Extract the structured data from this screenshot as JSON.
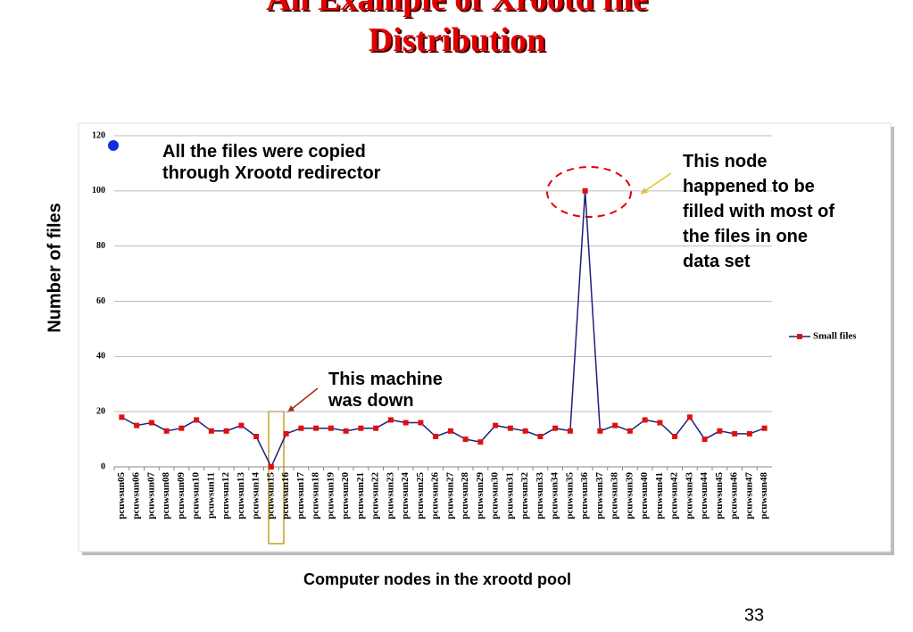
{
  "chart_data": {
    "type": "line",
    "title": "An Example of Xrootd file Distribution",
    "x_label": "Computer nodes in the xrootd pool",
    "y_label": "Number of files",
    "categories": [
      "pcuwsun05",
      "pcuwsun06",
      "pcuwsun07",
      "pcuwsun08",
      "pcuwsun09",
      "pcuwsun10",
      "pcuwsun11",
      "pcuwsun12",
      "pcuwsun13",
      "pcuwsun14",
      "pcuwsun15",
      "pcuwsun16",
      "pcuwsun17",
      "pcuwsun18",
      "pcuwsun19",
      "pcuwsun20",
      "pcuwsun21",
      "pcuwsun22",
      "pcuwsun23",
      "pcuwsun24",
      "pcuwsun25",
      "pcuwsun26",
      "pcuwsun27",
      "pcuwsun28",
      "pcuwsun29",
      "pcuwsun30",
      "pcuwsun31",
      "pcuwsun32",
      "pcuwsun33",
      "pcuwsun34",
      "pcuwsun35",
      "pcuwsun36",
      "pcuwsun37",
      "pcuwsun38",
      "pcuwsun39",
      "pcuwsun40",
      "pcuwsun41",
      "pcuwsun42",
      "pcuwsun43",
      "pcuwsun44",
      "pcuwsun45",
      "pcuwsun46",
      "pcuwsun47",
      "pcuwsun48"
    ],
    "series": [
      {
        "name": "Small files",
        "color": "#1f1f7a",
        "marker_color": "#e01010",
        "values": [
          18,
          15,
          16,
          13,
          14,
          17,
          13,
          13,
          15,
          11,
          0,
          12,
          14,
          14,
          14,
          13,
          14,
          14,
          17,
          16,
          16,
          11,
          13,
          10,
          9,
          15,
          14,
          13,
          11,
          14,
          13,
          100,
          13,
          15,
          13,
          17,
          16,
          11,
          18,
          10,
          13,
          12,
          12,
          14
        ]
      }
    ],
    "ylim": [
      0,
      120
    ],
    "yticks": [
      0,
      20,
      40,
      60,
      80,
      100,
      120
    ],
    "grid": true,
    "legend": "right",
    "annotations": [
      "All the files were copied through Xrootd redirector",
      "This node happened to be filled with most of the files in one data set",
      "This machine was down"
    ],
    "page_number": "33"
  }
}
